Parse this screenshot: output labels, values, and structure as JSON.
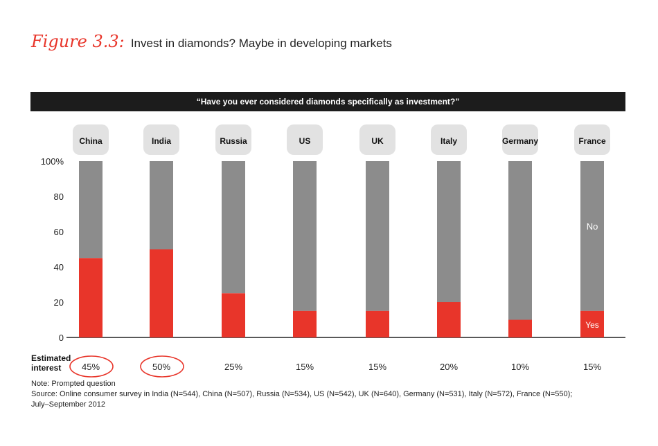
{
  "figure_label": "Figure 3.3:",
  "title": "Invest in diamonds? Maybe in developing markets",
  "chart_data": {
    "type": "bar",
    "stacked": true,
    "question": "“Have you ever considered diamonds specifically as investment?”",
    "categories": [
      "China",
      "India",
      "Russia",
      "US",
      "UK",
      "Italy",
      "Germany",
      "France"
    ],
    "series": [
      {
        "name": "Yes",
        "values": [
          45,
          50,
          25,
          15,
          15,
          20,
          10,
          15
        ],
        "color": "#e8352a"
      },
      {
        "name": "No",
        "values": [
          55,
          50,
          75,
          85,
          85,
          80,
          90,
          85
        ],
        "color": "#8c8c8c"
      }
    ],
    "segment_labels": {
      "yes": "Yes",
      "no": "No"
    },
    "ylim": [
      0,
      100
    ],
    "yticks": [
      "100%",
      "80",
      "60",
      "40",
      "20",
      "0"
    ],
    "grid": false,
    "estimated_interest": {
      "label_line1": "Estimated",
      "label_line2": "interest",
      "values": [
        "45%",
        "50%",
        "25%",
        "15%",
        "15%",
        "20%",
        "10%",
        "15%"
      ],
      "circled": [
        true,
        true,
        false,
        false,
        false,
        false,
        false,
        false
      ]
    }
  },
  "note": "Note: Prompted question",
  "source_line1": "Source: Online consumer survey in India (N=544), China (N=507), Russia (N=534), US (N=542), UK (N=640), Germany (N=531), Italy (N=572), France (N=550);",
  "source_line2": "July–September 2012",
  "colors": {
    "accent": "#e8352a",
    "bar_no": "#8c8c8c",
    "header_bg": "#1c1c1c"
  }
}
